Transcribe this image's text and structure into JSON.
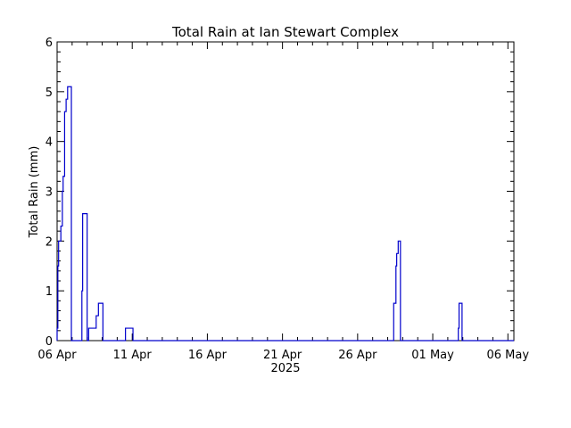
{
  "chart_data": {
    "type": "line",
    "title": "Total Rain at Ian Stewart Complex",
    "ylabel": "Total Rain (mm)",
    "xlabel": "2025",
    "line_color": "#0000cc",
    "axis_color": "#000000",
    "background": "#ffffff",
    "grid": false,
    "x_start": "06 Apr",
    "x_end_days": 30.4,
    "xlim_days": [
      0,
      30.4
    ],
    "ylim": [
      0,
      6
    ],
    "x_ticks": [
      {
        "day": 0,
        "label": "06 Apr"
      },
      {
        "day": 5,
        "label": "11 Apr"
      },
      {
        "day": 10,
        "label": "16 Apr"
      },
      {
        "day": 15,
        "label": "21 Apr"
      },
      {
        "day": 20,
        "label": "26 Apr"
      },
      {
        "day": 25,
        "label": "01 May"
      },
      {
        "day": 30,
        "label": "06 May"
      }
    ],
    "y_ticks": [
      0,
      1,
      2,
      3,
      4,
      5,
      6
    ],
    "series": [
      {
        "values": [
          [
            0.0,
            0.25
          ],
          [
            0.05,
            1.5
          ],
          [
            0.1,
            2.0
          ],
          [
            0.25,
            2.3
          ],
          [
            0.35,
            3.0
          ],
          [
            0.4,
            3.3
          ],
          [
            0.5,
            4.6
          ],
          [
            0.6,
            4.85
          ],
          [
            0.7,
            5.1
          ],
          [
            0.95,
            0
          ],
          [
            1.65,
            1.0
          ],
          [
            1.7,
            2.55
          ],
          [
            2.0,
            0
          ],
          [
            2.1,
            0.25
          ],
          [
            2.6,
            0.5
          ],
          [
            2.75,
            0.75
          ],
          [
            3.05,
            0
          ],
          [
            4.55,
            0.25
          ],
          [
            5.05,
            0
          ],
          [
            22.4,
            0.75
          ],
          [
            22.55,
            1.5
          ],
          [
            22.6,
            1.75
          ],
          [
            22.7,
            2.0
          ],
          [
            22.85,
            0
          ],
          [
            26.7,
            0.25
          ],
          [
            26.75,
            0.75
          ],
          [
            26.95,
            0
          ],
          [
            30.4,
            0
          ]
        ]
      }
    ]
  }
}
